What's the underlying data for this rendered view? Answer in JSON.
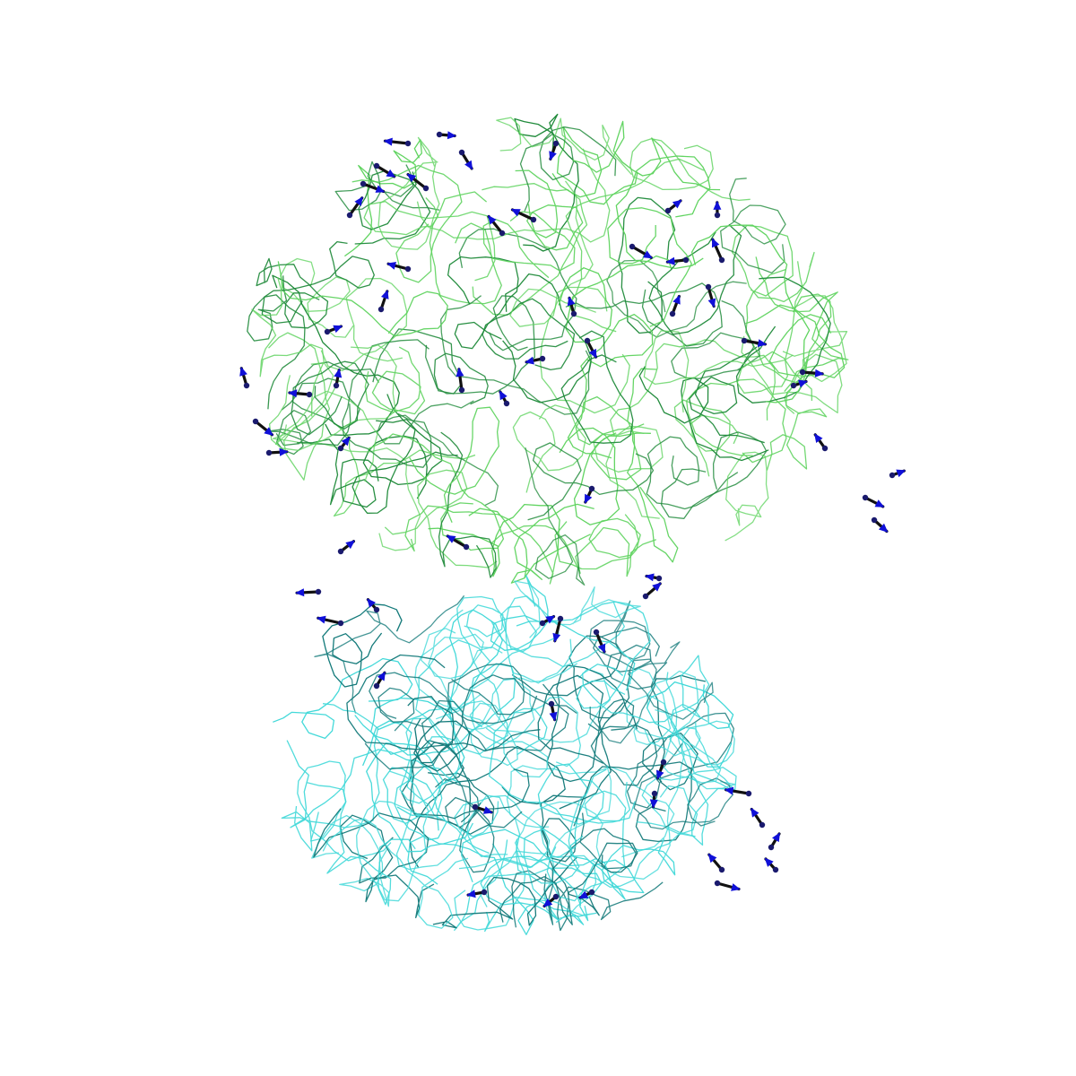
{
  "scene": {
    "background": "#ffffff",
    "representation": "backbone-trace",
    "chains": [
      {
        "name": "chain-upper",
        "color_light": "#5fd35f",
        "color_dark": "#1f8a3a"
      },
      {
        "name": "chain-lower",
        "color_light": "#3fd8d8",
        "color_dark": "#137a7a"
      }
    ],
    "vectors": {
      "shaft_color": "#111111",
      "head_color": "#1010d8"
    }
  }
}
